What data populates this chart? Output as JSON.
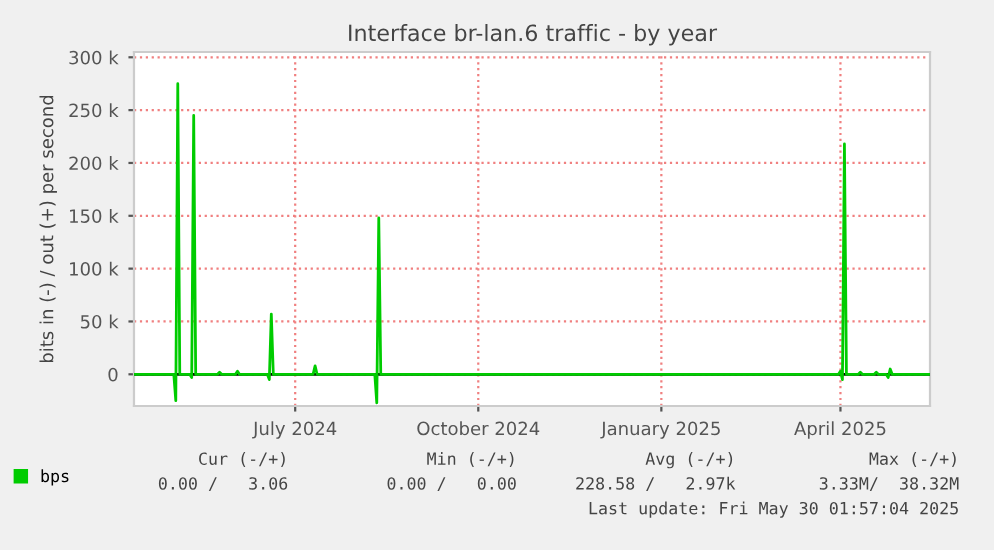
{
  "chart_data": {
    "type": "line",
    "title": "Interface br-lan.6 traffic - by year",
    "ylabel": "bits in (-) / out (+) per second",
    "x": [
      "2024-04-11",
      "2024-05-01",
      "2024-05-02",
      "2024-05-03",
      "2024-05-04",
      "2024-05-09",
      "2024-05-10",
      "2024-05-11",
      "2024-05-12",
      "2024-05-23",
      "2024-05-24",
      "2024-05-25",
      "2024-06-01",
      "2024-06-02",
      "2024-06-03",
      "2024-06-17",
      "2024-06-18",
      "2024-06-19",
      "2024-06-20",
      "2024-07-10",
      "2024-07-11",
      "2024-07-12",
      "2024-08-10",
      "2024-08-11",
      "2024-08-12",
      "2024-08-13",
      "2025-03-31",
      "2025-04-01",
      "2025-04-02",
      "2025-04-03",
      "2025-04-04",
      "2025-04-10",
      "2025-04-11",
      "2025-04-12",
      "2025-04-18",
      "2025-04-19",
      "2025-04-20",
      "2025-04-24",
      "2025-04-25",
      "2025-04-26",
      "2025-04-27",
      "2025-05-16"
    ],
    "series": [
      {
        "name": "bps",
        "color": "#00cc00",
        "values": [
          0,
          0,
          -25000,
          275000,
          0,
          0,
          -3000,
          245000,
          0,
          0,
          2000,
          0,
          0,
          3000,
          0,
          0,
          -5000,
          57000,
          0,
          0,
          8000,
          0,
          0,
          -27000,
          148000,
          0,
          0,
          3000,
          -5000,
          218000,
          0,
          0,
          2000,
          0,
          0,
          2000,
          0,
          0,
          -3000,
          5000,
          0,
          0
        ]
      }
    ],
    "xlim": [
      "2024-04-11",
      "2025-05-16"
    ],
    "xticks": [
      {
        "value": "2024-07-01",
        "label": "July 2024"
      },
      {
        "value": "2024-10-01",
        "label": "October 2024"
      },
      {
        "value": "2025-01-01",
        "label": "January 2025"
      },
      {
        "value": "2025-04-01",
        "label": "April 2025"
      }
    ],
    "ylim": [
      -30000,
      305000
    ],
    "yticks": [
      0,
      {
        "value": 50000,
        "label": "50 k"
      },
      {
        "value": 100000,
        "label": "100 k"
      },
      {
        "value": 150000,
        "label": "150 k"
      },
      {
        "value": 200000,
        "label": "200 k"
      },
      {
        "value": 250000,
        "label": "250 k"
      },
      {
        "value": 300000,
        "label": "300 k"
      }
    ],
    "ref_lines": [
      {
        "axis": "y",
        "value": 0,
        "color": "#000000"
      }
    ],
    "grid": true,
    "legend": "bottom left",
    "marker": "none",
    "line_style": "solid",
    "annotations": [
      "Cur (-/+)",
      "Min (-/+)",
      "Avg (-/+)",
      "Max (-/+)",
      "0.00 /   3.06",
      "0.00 /   0.00",
      "228.58 /   2.97k",
      "3.33M/  38.32M",
      "Last update: Fri May 30 01:57:04 2025"
    ]
  }
}
